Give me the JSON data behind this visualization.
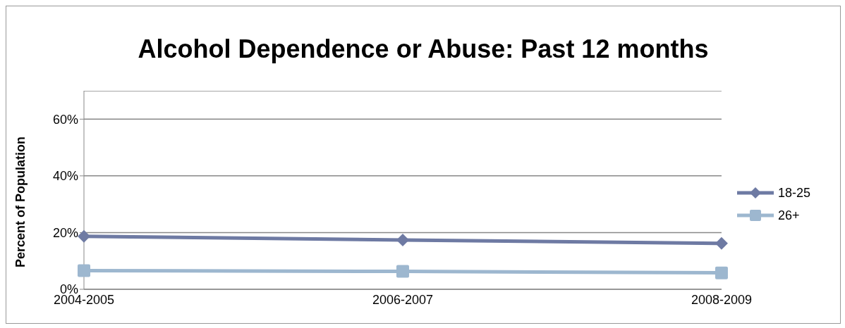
{
  "chart_data": {
    "type": "line",
    "title": "Alcohol Dependence or Abuse: Past 12 months",
    "ylabel": "Percent of Population",
    "categories": [
      "2004-2005",
      "2006-2007",
      "2008-2009"
    ],
    "series": [
      {
        "name": "18-25",
        "color": "#6e7aa3",
        "values": [
          18.7,
          17.4,
          16.2
        ],
        "marker": "diamond"
      },
      {
        "name": "26+",
        "color": "#9db7cf",
        "values": [
          6.6,
          6.3,
          5.8
        ],
        "marker": "square"
      }
    ],
    "ylim": [
      0,
      70
    ],
    "yticks": [
      {
        "value": 0,
        "label": "0%"
      },
      {
        "value": 20,
        "label": "20%"
      },
      {
        "value": 40,
        "label": "40%"
      },
      {
        "value": 60,
        "label": "60%"
      }
    ],
    "grid": "y",
    "legend": "right",
    "line_style": "solid"
  }
}
